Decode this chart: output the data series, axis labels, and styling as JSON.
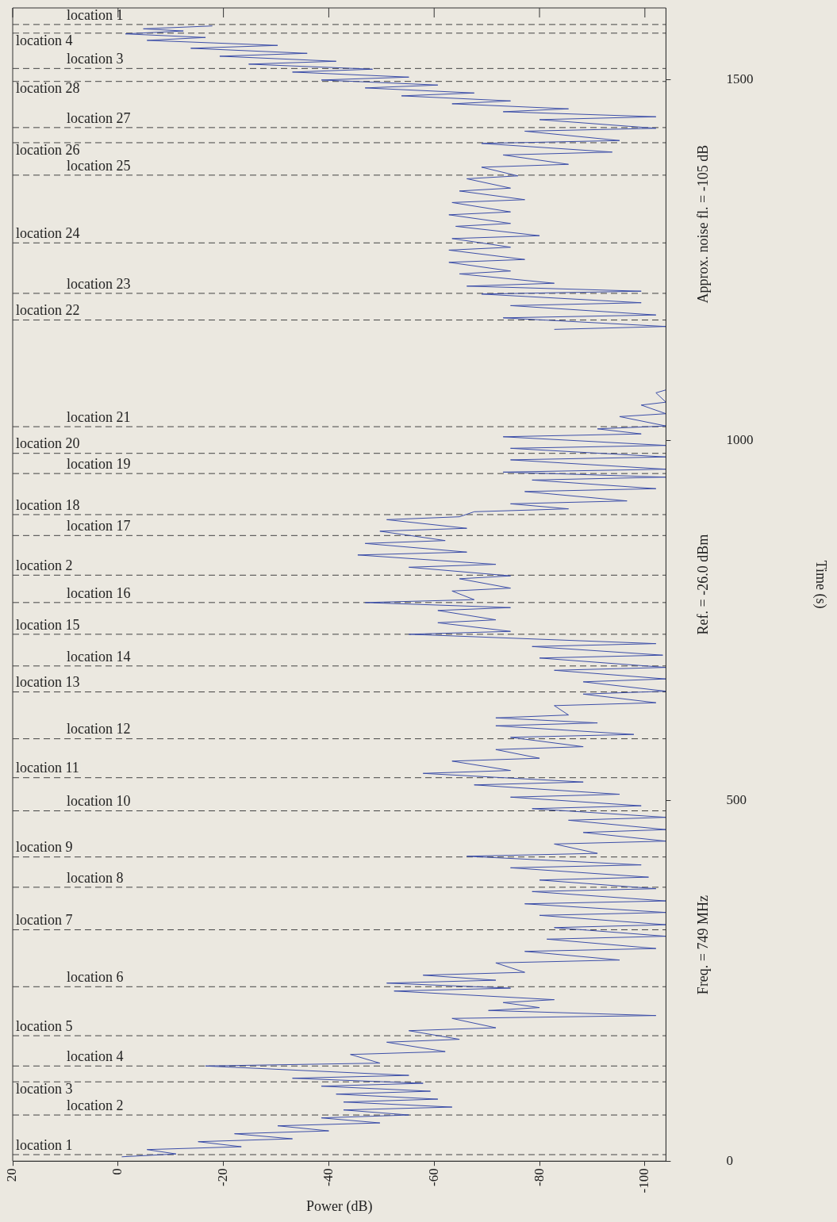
{
  "chart_data": {
    "type": "line",
    "xlabel": "Power (dB)",
    "ylabel": "Time (s)",
    "xlim": [
      20,
      -104
    ],
    "xticks": [
      20,
      0,
      -20,
      -40,
      -60,
      -80,
      -100
    ],
    "ylim": [
      0,
      1600
    ],
    "yticks": [
      0,
      500,
      1000,
      1500
    ],
    "grid": false,
    "legend": false,
    "annotations": [
      "Freq. = 749 MHz",
      "Ref. = -26.0 dBm",
      "Approx. noise fl. = -105 dB"
    ],
    "ref_lines": [
      {
        "axis": "y",
        "value": 9,
        "label": "location 1"
      },
      {
        "axis": "y",
        "value": 64,
        "label": "location 2"
      },
      {
        "axis": "y",
        "value": 110,
        "label": "location 3"
      },
      {
        "axis": "y",
        "value": 132,
        "label": "location 4"
      },
      {
        "axis": "y",
        "value": 174,
        "label": "location 5"
      },
      {
        "axis": "y",
        "value": 242,
        "label": "location 6"
      },
      {
        "axis": "y",
        "value": 321,
        "label": "location 7"
      },
      {
        "axis": "y",
        "value": 380,
        "label": "location 8"
      },
      {
        "axis": "y",
        "value": 422,
        "label": "location 9"
      },
      {
        "axis": "y",
        "value": 486,
        "label": "location 10"
      },
      {
        "axis": "y",
        "value": 532,
        "label": "location 11"
      },
      {
        "axis": "y",
        "value": 586,
        "label": "location 12"
      },
      {
        "axis": "y",
        "value": 651,
        "label": "location 13"
      },
      {
        "axis": "y",
        "value": 687,
        "label": "location 14"
      },
      {
        "axis": "y",
        "value": 731,
        "label": "location 15"
      },
      {
        "axis": "y",
        "value": 775,
        "label": "location 16"
      },
      {
        "axis": "y",
        "value": 813,
        "label": "location 2"
      },
      {
        "axis": "y",
        "value": 868,
        "label": "location 17"
      },
      {
        "axis": "y",
        "value": 897,
        "label": "location 18"
      },
      {
        "axis": "y",
        "value": 954,
        "label": "location 19"
      },
      {
        "axis": "y",
        "value": 982,
        "label": "location 20"
      },
      {
        "axis": "y",
        "value": 1019,
        "label": "location 21"
      },
      {
        "axis": "y",
        "value": 1167,
        "label": "location 22"
      },
      {
        "axis": "y",
        "value": 1204,
        "label": "location 23"
      },
      {
        "axis": "y",
        "value": 1274,
        "label": "location 24"
      },
      {
        "axis": "y",
        "value": 1368,
        "label": "location 25"
      },
      {
        "axis": "y",
        "value": 1413,
        "label": "location 26"
      },
      {
        "axis": "y",
        "value": 1434,
        "label": "location 27"
      },
      {
        "axis": "y",
        "value": 1498,
        "label": "location 28"
      },
      {
        "axis": "y",
        "value": 1516,
        "label": "location 3"
      },
      {
        "axis": "y",
        "value": 1565,
        "label": "location 4"
      },
      {
        "axis": "y",
        "value": 1577,
        "label": "location 1"
      }
    ],
    "series": [
      {
        "color": "#3d4fa8",
        "x": [
          -0.7,
          -11,
          -5.5,
          -23.4,
          -15.2,
          -33.1,
          -22.1,
          -40,
          -30.3,
          -49.7,
          -38.6,
          -55.2,
          -42.8,
          -63.4,
          -42.8,
          -60.7,
          -41.4,
          -59.3,
          -38.6,
          -57.9,
          -33.1,
          -55.2,
          -16.6,
          -49.7,
          -44.1,
          -62.1,
          -51,
          -64.8,
          -55.2,
          -71.7,
          -63.4,
          -102.1,
          -70.3,
          -80,
          -73.1,
          -82.8,
          -52.4,
          -74.5,
          -51,
          -71.7,
          -57.9,
          -77.2,
          -71.7,
          -95.2,
          -77.2,
          -102.1,
          -81.4,
          -104,
          -82.8,
          -104,
          -80,
          -104,
          -77.2,
          -104,
          -78.6,
          -102.1,
          -80,
          -100.7,
          -74.5,
          -99.3,
          -66.2,
          -91,
          -82.8,
          -104,
          -88.3,
          -104,
          -85.5,
          -104,
          -78.6,
          -99.3,
          -74.5,
          -95.2,
          -67.6,
          -88.3,
          -57.9,
          -74.5,
          -63.4,
          -80,
          -71.7,
          -88.3,
          -74.5,
          -97.9,
          -71.7,
          -91,
          -71.7,
          -85.5,
          -82.8,
          -102.1,
          -88.3,
          -104,
          -88.3,
          -104,
          -82.8,
          -104,
          -80,
          -103.4,
          -78.6,
          -102.1,
          -55.2,
          -74.5,
          -60.7,
          -71.7,
          -60.7,
          -74.5,
          -46.9,
          -67.6,
          -63.4,
          -74.5,
          -64.8,
          -74.5,
          -55.2,
          -71.7,
          -45.5,
          -66.2,
          -46.9,
          -62.1,
          -49.7,
          -66.2,
          -51,
          -64.8,
          -67.6,
          -85.5,
          -74.5,
          -96.6,
          -77.2,
          -102.1,
          -78.6,
          -104,
          -73.1,
          -104,
          -74.5,
          -104,
          -74.5,
          -104,
          -73.1,
          -99.3,
          -91,
          -104,
          -95.2,
          -104,
          -99.3,
          -104,
          -102.1,
          -104,
          null,
          -82.8,
          -104,
          -73.1,
          -102.1,
          -74.5,
          -99.3,
          -69,
          -99.3,
          -66.2,
          -82.8,
          -64.8,
          -74.5,
          -62.8,
          -77.2,
          -62.8,
          -74.5,
          -63.4,
          -80,
          -64.1,
          -74.5,
          -62.8,
          -74.5,
          -63.4,
          -77.2,
          -64.8,
          -74.5,
          -66.2,
          -75.9,
          -69,
          -85.5,
          -73.1,
          -93.8,
          -69,
          -95.2,
          -77.2,
          -102.1,
          -80,
          -102.1,
          -73.1,
          -85.5,
          -63.4,
          -74.5,
          -53.8,
          -67.6,
          -46.9,
          -60.7,
          -38.6,
          -55.2,
          -33.1,
          -48.3,
          -24.8,
          -41.4,
          -19.3,
          -35.9,
          -13.8,
          -30.3,
          -5.5,
          -16.6,
          -1.4,
          -12.4,
          -4.8,
          -17.9
        ],
        "values": [
          6,
          10,
          16,
          20,
          27,
          31,
          38,
          42,
          49,
          53,
          60,
          64,
          71,
          75,
          82,
          86,
          93,
          97,
          104,
          108,
          115,
          119,
          132,
          136,
          148,
          152,
          165,
          169,
          181,
          185,
          198,
          202,
          209,
          213,
          220,
          224,
          236,
          240,
          247,
          251,
          258,
          262,
          275,
          279,
          291,
          295,
          308,
          312,
          324,
          328,
          341,
          345,
          357,
          361,
          374,
          378,
          390,
          394,
          407,
          411,
          423,
          427,
          440,
          444,
          456,
          460,
          473,
          477,
          489,
          493,
          505,
          509,
          522,
          526,
          538,
          542,
          555,
          559,
          571,
          575,
          588,
          592,
          604,
          608,
          615,
          619,
          632,
          636,
          648,
          652,
          665,
          669,
          681,
          685,
          698,
          702,
          714,
          718,
          731,
          735,
          747,
          751,
          764,
          768,
          775,
          779,
          791,
          795,
          808,
          812,
          824,
          828,
          841,
          845,
          857,
          861,
          874,
          878,
          890,
          894,
          901,
          905,
          912,
          916,
          929,
          933,
          945,
          949,
          956,
          960,
          973,
          977,
          989,
          993,
          1005,
          1009,
          1016,
          1020,
          1033,
          1037,
          1049,
          1053,
          1066,
          1070,
          null,
          1154,
          1158,
          1170,
          1174,
          1187,
          1191,
          1203,
          1207,
          1214,
          1218,
          1231,
          1235,
          1247,
          1251,
          1264,
          1268,
          1280,
          1284,
          1297,
          1301,
          1313,
          1317,
          1330,
          1334,
          1346,
          1350,
          1363,
          1367,
          1379,
          1383,
          1396,
          1400,
          1412,
          1416,
          1429,
          1433,
          1445,
          1449,
          1456,
          1460,
          1467,
          1471,
          1478,
          1482,
          1489,
          1493,
          1500,
          1504,
          1511,
          1515,
          1522,
          1526,
          1533,
          1537,
          1544,
          1548,
          1555,
          1559,
          1564,
          1568,
          1571,
          1575
        ]
      }
    ]
  }
}
